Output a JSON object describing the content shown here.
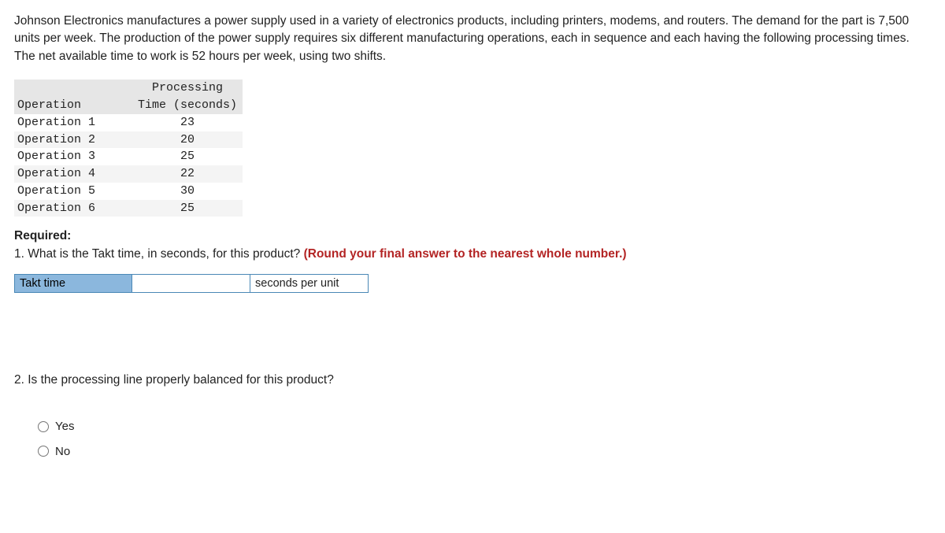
{
  "intro": "Johnson Electronics manufactures a power supply used in a variety of electronics products, including printers, modems, and routers. The demand for the part is 7,500 units per week. The production of the power supply requires six different manufacturing operations, each in sequence and each having the following processing times. The net available time to work is 52 hours per week, using two shifts.",
  "table": {
    "header_col0": "Operation",
    "header_col1_line1": "Processing",
    "header_col1_line2": "Time (seconds)",
    "rows": [
      {
        "op": "Operation 1",
        "time": "23"
      },
      {
        "op": "Operation 2",
        "time": "20"
      },
      {
        "op": "Operation 3",
        "time": "25"
      },
      {
        "op": "Operation 4",
        "time": "22"
      },
      {
        "op": "Operation 5",
        "time": "30"
      },
      {
        "op": "Operation 6",
        "time": "25"
      }
    ]
  },
  "required_label": "Required:",
  "q1_prefix": "1. What is the Takt time, in seconds, for this product? ",
  "q1_redbold": "(Round your final answer to the nearest whole number.)",
  "answer": {
    "label": "Takt time",
    "value": "",
    "unit": "seconds per unit"
  },
  "q2_text": "2. Is the processing line properly balanced for this product?",
  "radios": {
    "yes": "Yes",
    "no": "No"
  }
}
